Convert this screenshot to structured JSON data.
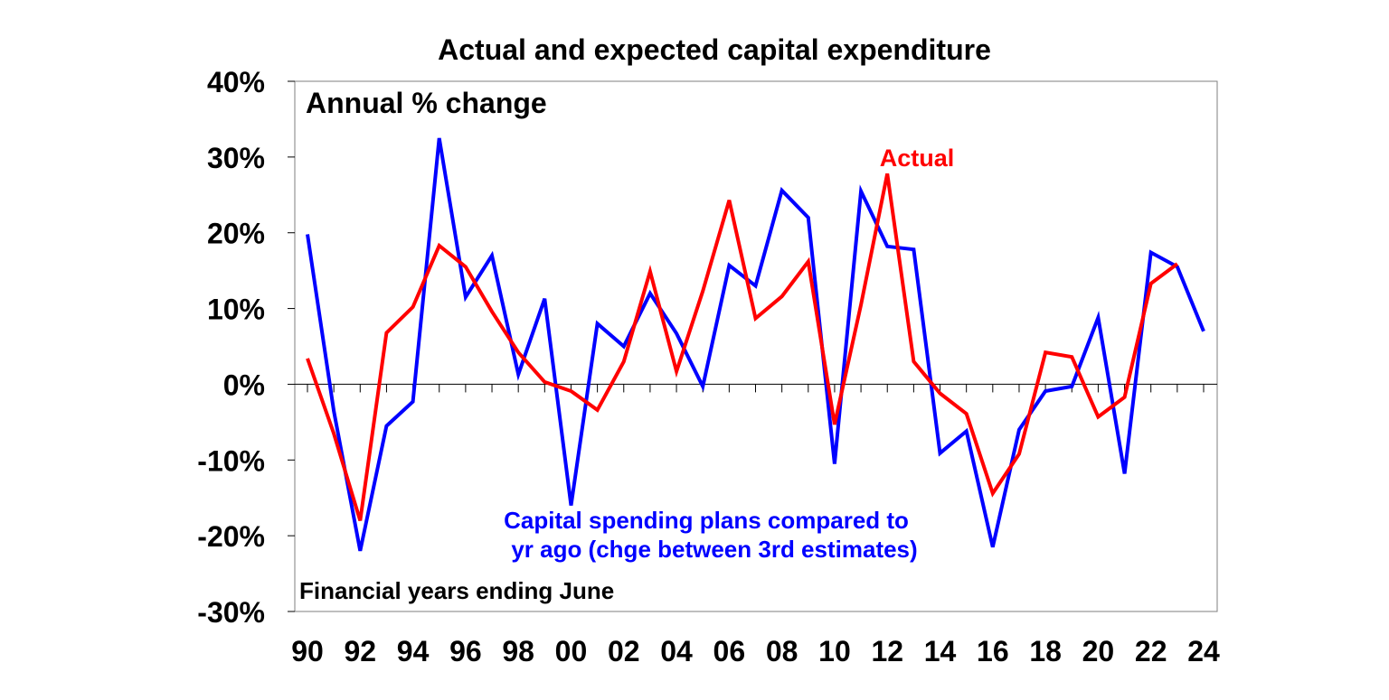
{
  "chart_data": {
    "type": "line",
    "title": "Actual and expected capital expenditure",
    "annotations": {
      "unit_label": "Annual % change",
      "x_note": "Financial years ending June",
      "actual_label": "Actual",
      "plans_label_line1": "Capital spending plans compared to",
      "plans_label_line2": "yr ago (chge between 3rd estimates)"
    },
    "ylim": [
      -30,
      40
    ],
    "yticks": [
      40,
      30,
      20,
      10,
      0,
      -10,
      -20,
      -30
    ],
    "ytick_labels": [
      "40%",
      "30%",
      "20%",
      "10%",
      "0%",
      "-10%",
      "-20%",
      "-30%"
    ],
    "xlim": [
      1990,
      2024
    ],
    "xticks": [
      1990,
      1992,
      1994,
      1996,
      1998,
      2000,
      2002,
      2004,
      2006,
      2008,
      2010,
      2012,
      2014,
      2016,
      2018,
      2020,
      2022,
      2024
    ],
    "xtick_labels": [
      "90",
      "92",
      "94",
      "96",
      "98",
      "00",
      "02",
      "04",
      "06",
      "08",
      "10",
      "12",
      "14",
      "16",
      "18",
      "20",
      "22",
      "24"
    ],
    "grid": false,
    "series": [
      {
        "name": "Capital spending plans compared to yr ago (chge between 3rd estimates)",
        "color": "#0000ff",
        "x": [
          1990,
          1991,
          1992,
          1993,
          1994,
          1995,
          1996,
          1997,
          1998,
          1999,
          2000,
          2001,
          2002,
          2003,
          2004,
          2005,
          2006,
          2007,
          2008,
          2009,
          2010,
          2011,
          2012,
          2013,
          2014,
          2015,
          2016,
          2017,
          2018,
          2019,
          2020,
          2021,
          2022,
          2023,
          2024
        ],
        "values": [
          19.8,
          -3.5,
          -22,
          -5.5,
          -2.3,
          32.5,
          11.5,
          17,
          1.3,
          11.3,
          -16,
          8,
          5,
          12,
          6.7,
          -0.3,
          15.7,
          13,
          25.6,
          22,
          -10.5,
          25.5,
          18.2,
          17.8,
          -9.1,
          -6.2,
          -21.5,
          -6,
          -0.9,
          -0.3,
          8.8,
          -11.8,
          17.4,
          15.5,
          7
        ]
      },
      {
        "name": "Actual",
        "color": "#ff0000",
        "x": [
          1990,
          1991,
          1992,
          1993,
          1994,
          1995,
          1996,
          1997,
          1998,
          1999,
          2000,
          2001,
          2002,
          2003,
          2004,
          2005,
          2006,
          2007,
          2008,
          2009,
          2010,
          2011,
          2012,
          2013,
          2014,
          2015,
          2016,
          2017,
          2018,
          2019,
          2020,
          2021,
          2022,
          2023
        ],
        "values": [
          3.4,
          -6.5,
          -18,
          6.8,
          10.2,
          18.3,
          15.5,
          9.6,
          4.2,
          0.3,
          -0.9,
          -3.4,
          3,
          14.9,
          1.7,
          12.3,
          24.3,
          8.7,
          11.6,
          16.2,
          -5.3,
          10.5,
          27.8,
          3,
          -1.2,
          -3.9,
          -14.4,
          -9.2,
          4.2,
          3.6,
          -4.3,
          -1.7,
          13.3,
          15.9
        ]
      }
    ]
  }
}
